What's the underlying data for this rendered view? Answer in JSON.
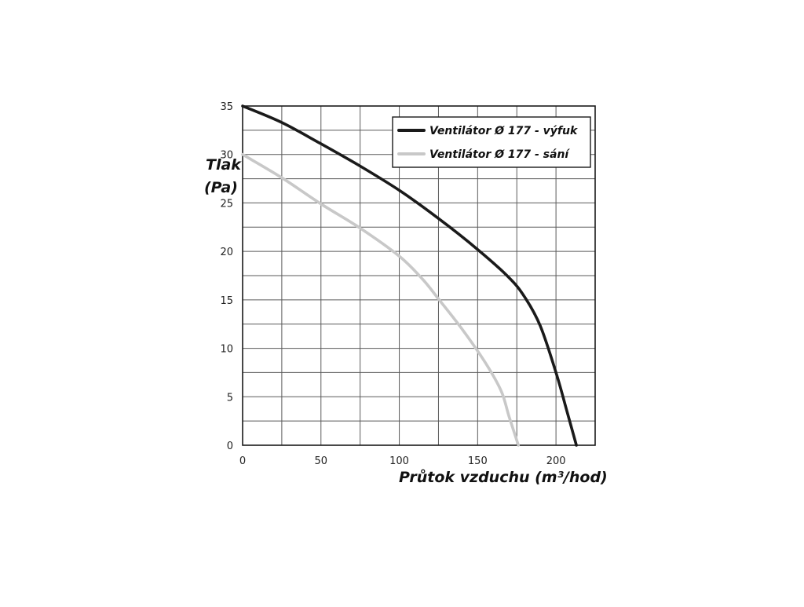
{
  "chart_data": {
    "type": "line",
    "xlabel": "Průtok vzduchu (m³/hod)",
    "ylabel_line1": "Tlak",
    "ylabel_line2": "(Pa)",
    "xlim": [
      0,
      225
    ],
    "ylim": [
      0,
      35
    ],
    "x_ticks": [
      0,
      50,
      100,
      150,
      200
    ],
    "y_ticks": [
      0,
      5,
      10,
      15,
      20,
      25,
      30,
      35
    ],
    "x_grid_step": 25,
    "y_grid_step": 2.5,
    "grid": true,
    "legend_position": "top-right",
    "series": [
      {
        "name": "Ventilátor Ø 177 - výfuk",
        "color": "#1a1a1a",
        "x": [
          0,
          25,
          50,
          75,
          100,
          125,
          150,
          170,
          180,
          190,
          200,
          207,
          213
        ],
        "y": [
          35,
          33.3,
          31.1,
          28.8,
          26.3,
          23.4,
          20.2,
          17.3,
          15.3,
          12.3,
          7.5,
          3.5,
          0
        ]
      },
      {
        "name": "Ventilátor Ø 177 - sání",
        "color": "#c8c8c8",
        "x": [
          0,
          25,
          50,
          75,
          100,
          115,
          125,
          140,
          155,
          165,
          170,
          175,
          176
        ],
        "y": [
          30,
          27.6,
          24.9,
          22.4,
          19.5,
          17.1,
          15.1,
          12,
          8.5,
          5.6,
          3,
          0.5,
          0
        ]
      }
    ]
  }
}
